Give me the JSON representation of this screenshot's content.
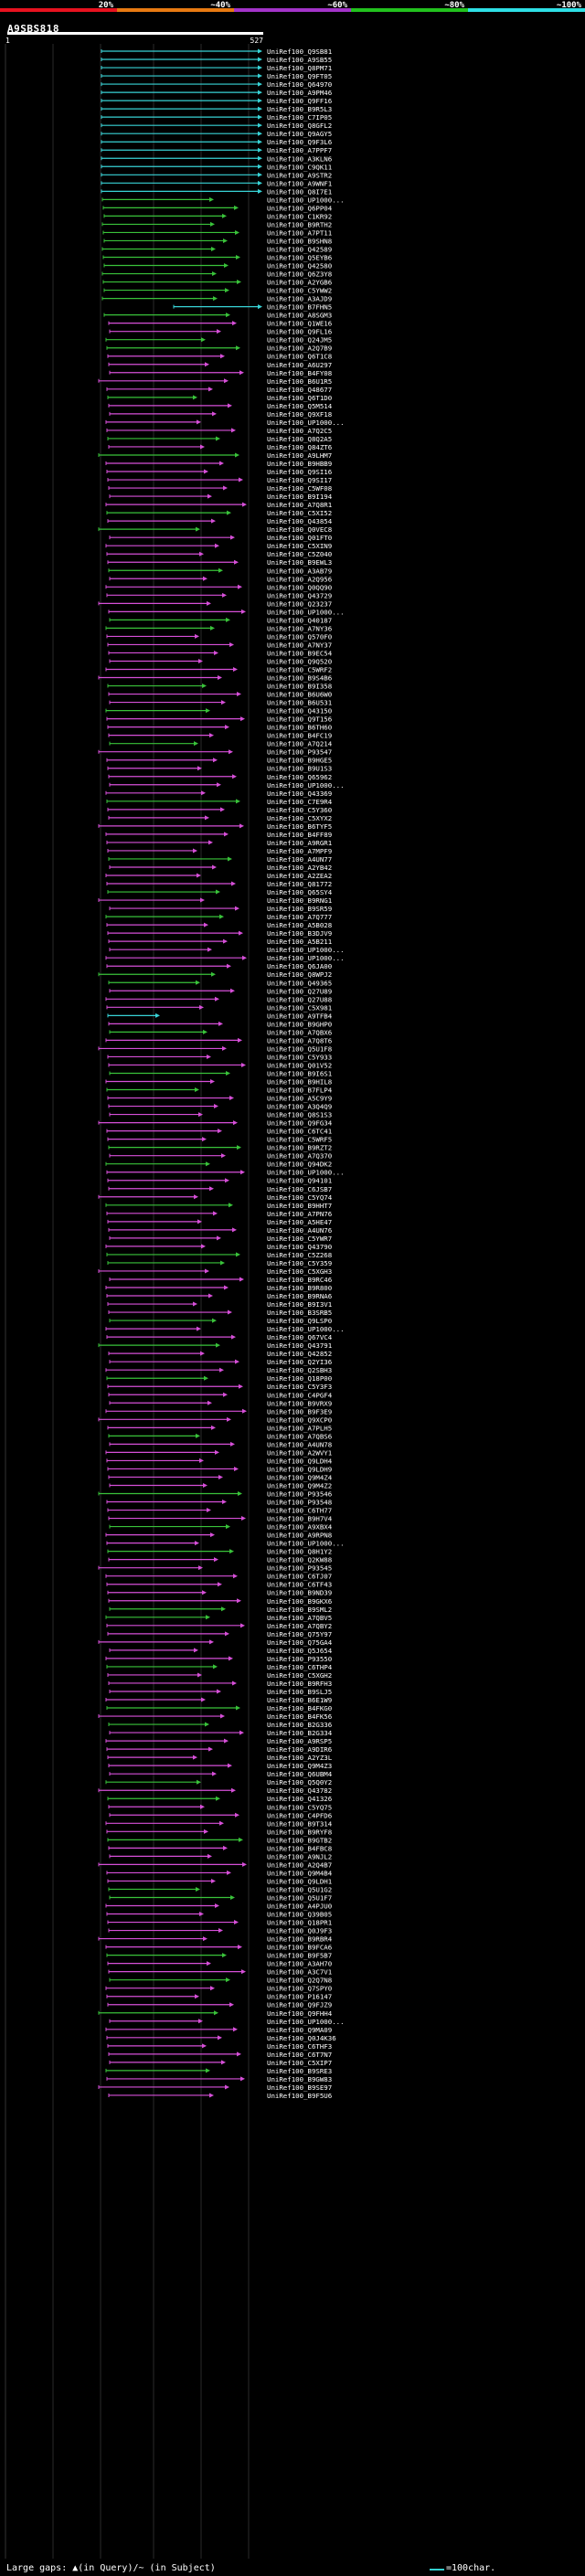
{
  "query_id": "A9SBS818",
  "query_length": "527",
  "query_start": "1",
  "identity_bands": [
    {
      "label": "20%",
      "color": "#e8121f"
    },
    {
      "label": "~40%",
      "color": "#e87a12"
    },
    {
      "label": "~60%",
      "color": "#a333c9"
    },
    {
      "label": "~80%",
      "color": "#22c21e"
    },
    {
      "label": "~100%",
      "color": "#2ee0e6"
    }
  ],
  "hit_colors": {
    "cyan": "#38d3d6",
    "green": "#39c23a",
    "magenta": "#d64fd8"
  },
  "hit_ids": [
    "UniRef100_Q9SB81",
    "UniRef100_A9SB55",
    "UniRef100_Q8PM71",
    "UniRef100_Q9FT05",
    "UniRef100_Q64970",
    "UniRef100_A9PM46",
    "UniRef100_Q9FF16",
    "UniRef100_B9R5L3",
    "UniRef100_C7IP05",
    "UniRef100_Q8GFL2",
    "UniRef100_Q9AGY5",
    "UniRef100_Q9F3L6",
    "UniRef100_A7PPF7",
    "UniRef100_A3KLN6",
    "UniRef100_C9QK11",
    "UniRef100_A9STR2",
    "UniRef100_A9WNF1",
    "UniRef100_Q8I7E1",
    "UniRef100_UP1000...",
    "UniRef100_Q6PP04",
    "UniRef100_C1KR92",
    "UniRef100_B9RTH2",
    "UniRef100_A7PT11",
    "UniRef100_B9SHN8",
    "UniRef100_Q42589",
    "UniRef100_Q5EYB6",
    "UniRef100_Q42580",
    "UniRef100_Q6Z3Y8",
    "UniRef100_A2YGB6",
    "UniRef100_C5YWW2",
    "UniRef100_A3AJD9",
    "UniRef100_B7FHN5",
    "UniRef100_A8SGM3",
    "UniRef100_Q1WE16",
    "UniRef100_Q9FL16",
    "UniRef100_Q24JM5",
    "UniRef100_A2Q7B9",
    "UniRef100_Q6T1C8",
    "UniRef100_A6U297",
    "UniRef100_B4FY08",
    "UniRef100_B6U1R5",
    "UniRef100_Q48677",
    "UniRef100_Q6T1D0",
    "UniRef100_Q5M514",
    "UniRef100_Q9XF18",
    "UniRef100_UP1000...",
    "UniRef100_A7Q2C5",
    "UniRef100_Q8Q2A5",
    "UniRef100_Q84ZT6",
    "UniRef100_A9LHM7",
    "UniRef100_B9HBB9",
    "UniRef100_Q9SI16",
    "UniRef100_Q9SI17",
    "UniRef100_C5WF08",
    "UniRef100_B9I194",
    "UniRef100_A7Q8R1",
    "UniRef100_C5XI52",
    "UniRef100_Q43854",
    "UniRef100_Q0VEC8",
    "UniRef100_Q01FT0",
    "UniRef100_C5XIN9",
    "UniRef100_C5Z040",
    "UniRef100_B9EWL3",
    "UniRef100_A3AB79",
    "UniRef100_A2Q956",
    "UniRef100_Q0QQ90",
    "UniRef100_Q43729",
    "UniRef100_Q23237",
    "UniRef100_UP1000...",
    "UniRef100_Q40187",
    "UniRef100_A7NY36",
    "UniRef100_Q570F0",
    "UniRef100_A7NY37",
    "UniRef100_B9EC54",
    "UniRef100_Q9Q520",
    "UniRef100_C5WRF2",
    "UniRef100_B9S4B6",
    "UniRef100_B9I358",
    "UniRef100_B6U6W0",
    "UniRef100_B6U531",
    "UniRef100_Q43150",
    "UniRef100_Q9T156",
    "UniRef100_B6TH60",
    "UniRef100_B4FC19",
    "UniRef100_A7Q214",
    "UniRef100_P93547",
    "UniRef100_B9HGE5",
    "UniRef100_B9U1S3",
    "UniRef100_Q65962",
    "UniRef100_UP1000...",
    "UniRef100_Q43369",
    "UniRef100_C7E9R4",
    "UniRef100_C5Y360",
    "UniRef100_C5XYX2",
    "UniRef100_B6TYF5",
    "UniRef100_B4FF89",
    "UniRef100_A9RGR1",
    "UniRef100_A7MPF9",
    "UniRef100_A4UN77",
    "UniRef100_A2YB42",
    "UniRef100_A2ZEA2",
    "UniRef100_Q81772",
    "UniRef100_Q65SY4",
    "UniRef100_B9RNG1",
    "UniRef100_B9SR59",
    "UniRef100_A7Q777",
    "UniRef100_A5B028",
    "UniRef100_B3DJV9",
    "UniRef100_A5B211",
    "UniRef100_UP1000...",
    "UniRef100_UP1000...",
    "UniRef100_Q6JA00",
    "UniRef100_Q8WPJ2",
    "UniRef100_Q49365",
    "UniRef100_Q27U89",
    "UniRef100_Q27U88",
    "UniRef100_C5X981",
    "UniRef100_A9TFB4",
    "UniRef100_B9GHP0",
    "UniRef100_A7QBX6",
    "UniRef100_A7Q8T6",
    "UniRef100_Q5U1F8",
    "UniRef100_C5Y933",
    "UniRef100_Q01V52",
    "UniRef100_B9I6S1",
    "UniRef100_B9HIL8",
    "UniRef100_B7FLP4",
    "UniRef100_A5C9Y9",
    "UniRef100_A3Q4Q9",
    "UniRef100_Q8S1S3",
    "UniRef100_Q9FG34",
    "UniRef100_C6TC41",
    "UniRef100_C5WRF5",
    "UniRef100_B9RZT2",
    "UniRef100_A7Q370",
    "UniRef100_Q94DK2",
    "UniRef100_UP1000...",
    "UniRef100_Q94101",
    "UniRef100_C6JSB7",
    "UniRef100_C5YQ74",
    "UniRef100_B9HHT7",
    "UniRef100_A7PN76",
    "UniRef100_A5HE47",
    "UniRef100_A4UN76",
    "UniRef100_C5YWR7",
    "UniRef100_Q43790",
    "UniRef100_C5Z268",
    "UniRef100_C5Y359",
    "UniRef100_C5XGH3",
    "UniRef100_B9RC46",
    "UniRef100_B9R800",
    "UniRef100_B9RNA6",
    "UniRef100_B9I3V1",
    "UniRef100_B3SRB5",
    "UniRef100_Q9LSP0",
    "UniRef100_UP1000...",
    "UniRef100_Q67VC4",
    "UniRef100_Q43791",
    "UniRef100_Q42852",
    "UniRef100_Q2YI36",
    "UniRef100_Q2SBH3",
    "UniRef100_Q18P00",
    "UniRef100_C5Y3F3",
    "UniRef100_C4PGF4",
    "UniRef100_B9VRX9",
    "UniRef100_B9F3E9",
    "UniRef100_Q9XCP0",
    "UniRef100_A7PLH5",
    "UniRef100_A7QBS6",
    "UniRef100_A4UN78",
    "UniRef100_A2WVY1",
    "UniRef100_Q9LDH4",
    "UniRef100_Q9LDH9",
    "UniRef100_Q9M4Z4",
    "UniRef100_Q9M4Z2",
    "UniRef100_P93546",
    "UniRef100_P93548",
    "UniRef100_C6TH77",
    "UniRef100_B9H7V4",
    "UniRef100_A9XBX4",
    "UniRef100_A9RPN8",
    "UniRef100_UP1000...",
    "UniRef100_Q8H1Y2",
    "UniRef100_Q2KW88",
    "UniRef100_P93545",
    "UniRef100_C6TJ07",
    "UniRef100_C6TF43",
    "UniRef100_B9ND39",
    "UniRef100_B9GKX6",
    "UniRef100_B9SML2",
    "UniRef100_A7QBV5",
    "UniRef100_A7QBY2",
    "UniRef100_Q75Y97",
    "UniRef100_Q75GA4",
    "UniRef100_Q5J654",
    "UniRef100_P93550",
    "UniRef100_C6THP4",
    "UniRef100_C5XGH2",
    "UniRef100_B9RFH3",
    "UniRef100_B9SLJ5",
    "UniRef100_B6E1W9",
    "UniRef100_B4FKG0",
    "UniRef100_B4FK56",
    "UniRef100_B2G336",
    "UniRef100_B2G334",
    "UniRef100_A9RSP5",
    "UniRef100_A9DIR6",
    "UniRef100_A2YZ3L",
    "UniRef100_Q9M4Z3",
    "UniRef100_Q6UBM4",
    "UniRef100_Q5Q0Y2",
    "UniRef100_Q43782",
    "UniRef100_Q41326",
    "UniRef100_C5YQ75",
    "UniRef100_C4PFD6",
    "UniRef100_B9T314",
    "UniRef100_B9RYF8",
    "UniRef100_B9GTB2",
    "UniRef100_B4FBC8",
    "UniRef100_A9NJL2",
    "UniRef100_A2Q4B7",
    "UniRef100_Q9M4B4",
    "UniRef100_Q9LDH1",
    "UniRef100_Q5U1G2",
    "UniRef100_Q5U1F7",
    "UniRef100_A4PJU0",
    "UniRef100_Q39B05",
    "UniRef100_Q18PR1",
    "UniRef100_Q0J9F3",
    "UniRef100_B9RBR4",
    "UniRef100_B9FCA6",
    "UniRef100_B9F5B7",
    "UniRef100_A3AH70",
    "UniRef100_A3C7V1",
    "UniRef100_Q2Q7N8",
    "UniRef100_Q7SPY0",
    "UniRef100_P16147",
    "UniRef100_Q9FJZ9",
    "UniRef100_Q9FHH4",
    "UniRef100_UP1000...",
    "UniRef100_Q9MA09",
    "UniRef100_Q0J4K36",
    "UniRef100_C6THF3",
    "UniRef100_C6T7N7",
    "UniRef100_C5XIP7",
    "UniRef100_B9SRE3",
    "UniRef100_B9GW83",
    "UniRef100_B9SE97",
    "UniRef100_B9F5U6"
  ],
  "legend": {
    "left_text": "Large gaps: ▲(in Query)/~ (in Subject)",
    "right_text": "=100char."
  }
}
